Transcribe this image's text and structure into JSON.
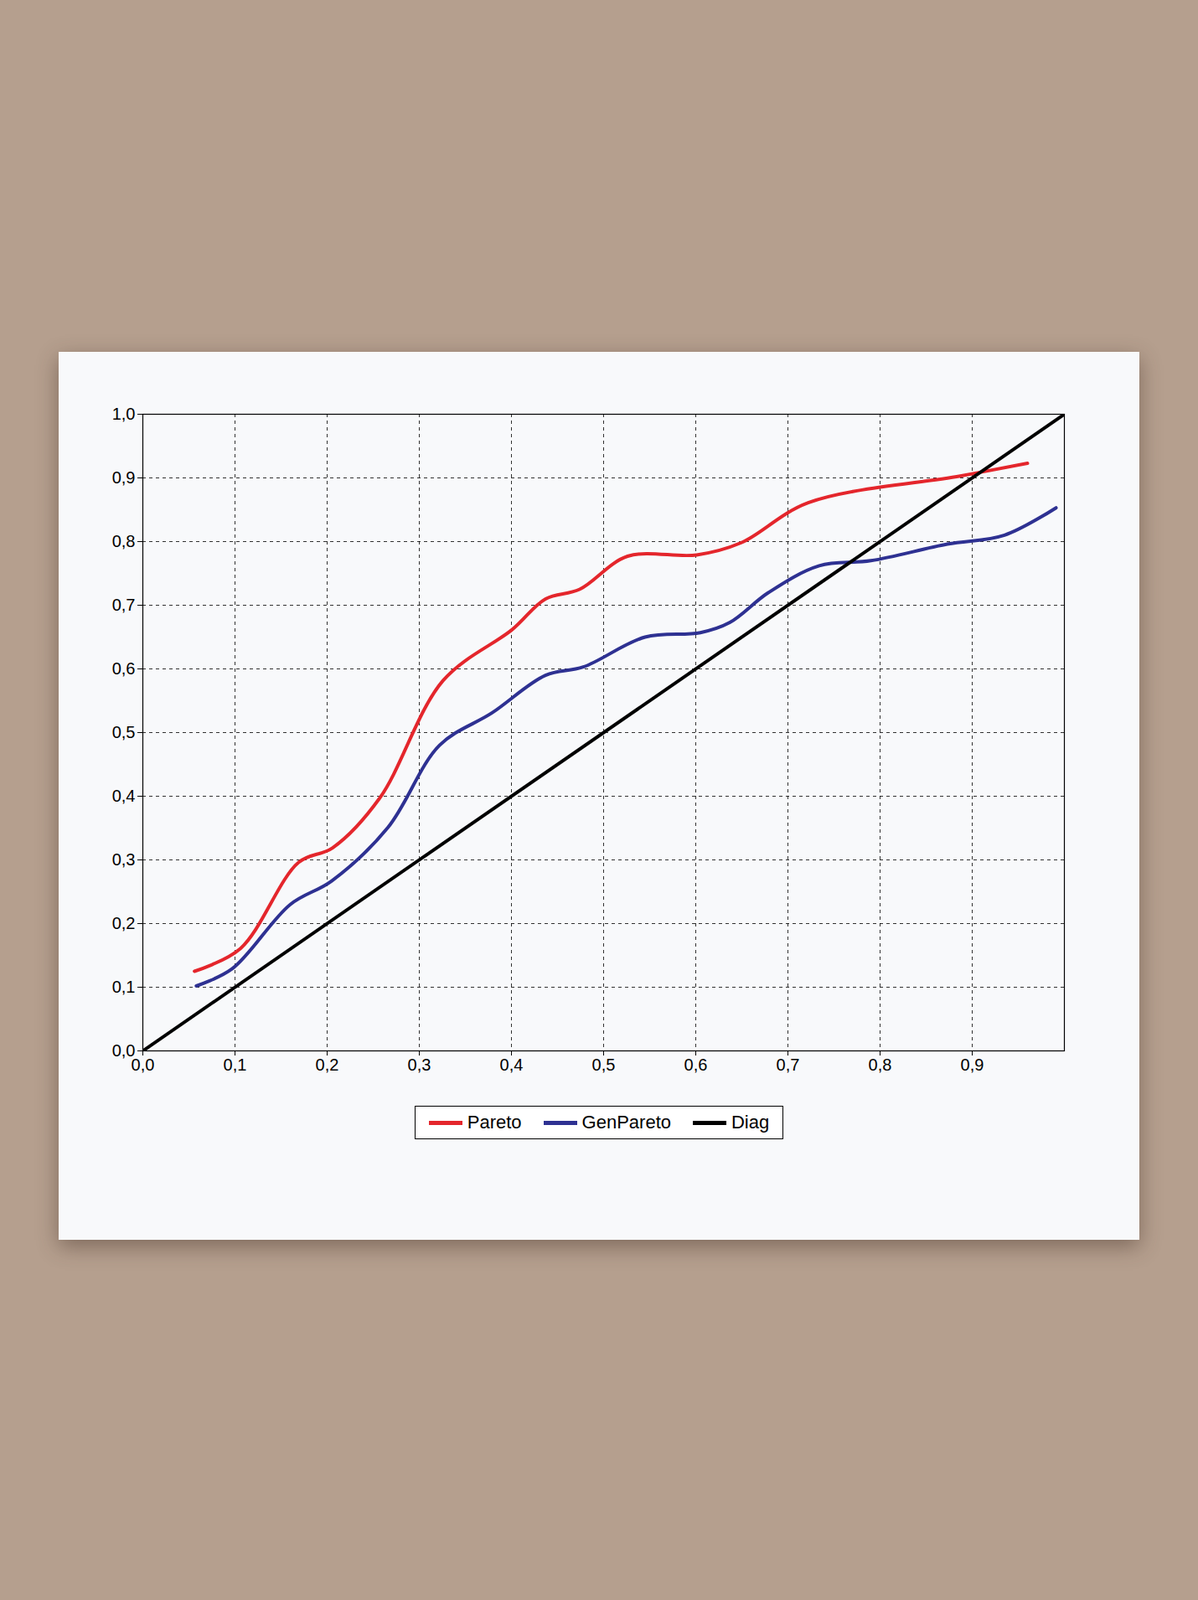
{
  "chart_data": {
    "type": "line",
    "xlim": [
      0,
      1
    ],
    "xticks": [
      {
        "value": 0,
        "label": "0,0"
      },
      {
        "value": 0.1,
        "label": "0,1"
      },
      {
        "value": 0.2,
        "label": "0,2"
      },
      {
        "value": 0.3,
        "label": "0,3"
      },
      {
        "value": 0.4,
        "label": "0,4"
      },
      {
        "value": 0.5,
        "label": "0,5"
      },
      {
        "value": 0.6,
        "label": "0,6"
      },
      {
        "value": 0.7,
        "label": "0,7"
      },
      {
        "value": 0.8,
        "label": "0,8"
      },
      {
        "value": 0.9,
        "label": "0,9"
      }
    ],
    "ylim": [
      0,
      1
    ],
    "yticks": [
      {
        "value": 0,
        "label": "0,0"
      },
      {
        "value": 0.1,
        "label": "0,1"
      },
      {
        "value": 0.2,
        "label": "0,2"
      },
      {
        "value": 0.3,
        "label": "0,3"
      },
      {
        "value": 0.4,
        "label": "0,4"
      },
      {
        "value": 0.5,
        "label": "0,5"
      },
      {
        "value": 0.6,
        "label": "0,6"
      },
      {
        "value": 0.7,
        "label": "0,7"
      },
      {
        "value": 0.8,
        "label": "0,8"
      },
      {
        "value": 0.9,
        "label": "0,9"
      },
      {
        "value": 1,
        "label": "1,0"
      }
    ],
    "grid": true,
    "legend": "bottom",
    "series": [
      {
        "name": "Pareto",
        "color": "#e4262c",
        "x": [
          0.056,
          0.106,
          0.169,
          0.206,
          0.257,
          0.326,
          0.401,
          0.437,
          0.474,
          0.526,
          0.601,
          0.649,
          0.722,
          0.887,
          0.96
        ],
        "values": [
          0.125,
          0.161,
          0.296,
          0.319,
          0.397,
          0.582,
          0.662,
          0.71,
          0.725,
          0.777,
          0.779,
          0.798,
          0.861,
          0.903,
          0.923
        ]
      },
      {
        "name": "GenPareto",
        "color": "#2e3192",
        "x": [
          0.058,
          0.097,
          0.16,
          0.205,
          0.266,
          0.322,
          0.379,
          0.437,
          0.478,
          0.545,
          0.605,
          0.637,
          0.679,
          0.734,
          0.79,
          0.873,
          0.935,
          0.991
        ],
        "values": [
          0.102,
          0.129,
          0.23,
          0.267,
          0.351,
          0.48,
          0.531,
          0.59,
          0.603,
          0.65,
          0.657,
          0.673,
          0.72,
          0.762,
          0.77,
          0.796,
          0.81,
          0.853
        ]
      },
      {
        "name": "Diag",
        "color": "#000000",
        "x": [
          0,
          1
        ],
        "values": [
          0,
          1
        ]
      }
    ]
  }
}
